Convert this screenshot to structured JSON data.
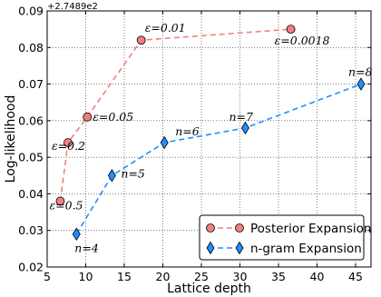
{
  "chart_data": {
    "type": "line",
    "xlabel": "Lattice depth",
    "ylabel": "Log-likelihood",
    "y_offset_label": "+2.7489e2",
    "xlim": [
      5,
      47
    ],
    "ylim": [
      0.02,
      0.09
    ],
    "x_ticks": [
      "5",
      "10",
      "15",
      "20",
      "25",
      "30",
      "35",
      "40",
      "45"
    ],
    "y_ticks": [
      "0.02",
      "0.03",
      "0.04",
      "0.05",
      "0.06",
      "0.07",
      "0.08",
      "0.09"
    ],
    "grid": true,
    "legend_position": "lower-right",
    "series": [
      {
        "name": "Posterior Expansion",
        "color": "#f08080",
        "marker": "circle",
        "line_style": "dashed",
        "x": [
          6.7,
          7.7,
          10.2,
          17.2,
          36.6
        ],
        "y": [
          0.038,
          0.054,
          0.061,
          0.082,
          0.085
        ],
        "annotations": [
          "ε=0.5",
          "ε=0.2",
          "ε=0.05",
          "ε=0.01",
          "ε=0.0018"
        ]
      },
      {
        "name": "n-gram Expansion",
        "color": "#1e90ff",
        "marker": "diamond",
        "line_style": "dashed",
        "x": [
          8.8,
          13.4,
          20.2,
          30.7,
          45.7
        ],
        "y": [
          0.029,
          0.045,
          0.054,
          0.058,
          0.07
        ],
        "annotations": [
          "n=4",
          "n=5",
          "n=6",
          "n=7",
          "n=8"
        ]
      }
    ]
  }
}
